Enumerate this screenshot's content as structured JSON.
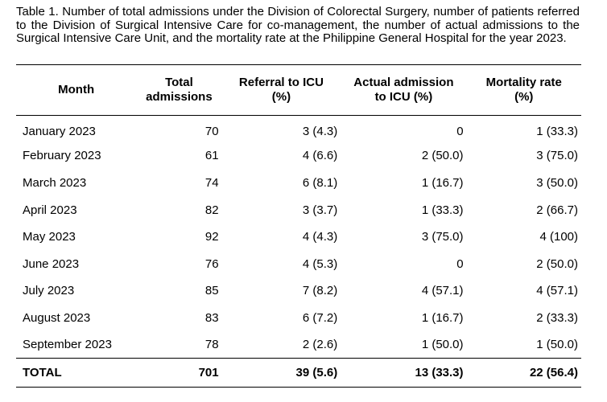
{
  "caption": "Table 1. Number of total admissions under the Division of Colorectal Surgery, number of patients referred to the Division of Surgical Intensive Care for co-management, the number of actual admissions to the Surgical Intensive Care Unit, and the mortality rate at the Philippine General Hospital for the year 2023.",
  "headers": {
    "month": "Month",
    "total_line1": "Total",
    "total_line2": "admissions",
    "referral_line1": "Referral to ICU",
    "referral_line2": "(%)",
    "actual_line1": "Actual admission",
    "actual_line2": "to ICU (%)",
    "mortality_line1": "Mortality rate",
    "mortality_line2": "(%)"
  },
  "rows": [
    {
      "month": "January 2023",
      "total": "70",
      "referral": "3 (4.3)",
      "actual": "0",
      "mortality": "1 (33.3)"
    },
    {
      "month": "February 2023",
      "total": "61",
      "referral": "4 (6.6)",
      "actual": "2 (50.0)",
      "mortality": "3 (75.0)"
    },
    {
      "month": "March 2023",
      "total": "74",
      "referral": "6 (8.1)",
      "actual": "1 (16.7)",
      "mortality": "3 (50.0)"
    },
    {
      "month": "April 2023",
      "total": "82",
      "referral": "3 (3.7)",
      "actual": "1 (33.3)",
      "mortality": "2 (66.7)"
    },
    {
      "month": "May 2023",
      "total": "92",
      "referral": "4 (4.3)",
      "actual": "3 (75.0)",
      "mortality": "4 (100)"
    },
    {
      "month": "June 2023",
      "total": "76",
      "referral": "4 (5.3)",
      "actual": "0",
      "mortality": "2 (50.0)"
    },
    {
      "month": "July 2023",
      "total": "85",
      "referral": "7 (8.2)",
      "actual": "4 (57.1)",
      "mortality": "4 (57.1)"
    },
    {
      "month": "August 2023",
      "total": "83",
      "referral": "6 (7.2)",
      "actual": "1 (16.7)",
      "mortality": "2 (33.3)"
    },
    {
      "month": "September 2023",
      "total": "78",
      "referral": "2 (2.6)",
      "actual": "1 (50.0)",
      "mortality": "1 (50.0)"
    }
  ],
  "total_row": {
    "month": "TOTAL",
    "total": "701",
    "referral": "39 (5.6)",
    "actual": "13 (33.3)",
    "mortality": "22 (56.4)"
  }
}
